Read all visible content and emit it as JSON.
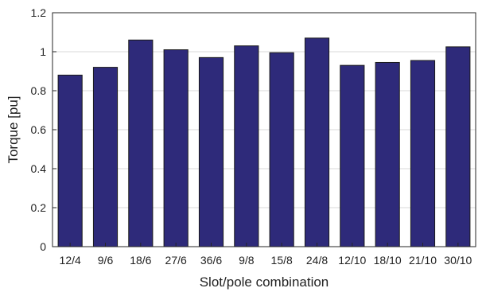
{
  "chart_data": {
    "type": "bar",
    "categories": [
      "12/4",
      "9/6",
      "18/6",
      "27/6",
      "36/6",
      "9/8",
      "15/8",
      "24/8",
      "12/10",
      "18/10",
      "21/10",
      "30/10"
    ],
    "values": [
      0.88,
      0.92,
      1.06,
      1.01,
      0.97,
      1.03,
      0.995,
      1.07,
      0.93,
      0.945,
      0.955,
      1.025
    ],
    "title": "",
    "xlabel": "Slot/pole combination",
    "ylabel": "Torque [pu]",
    "ylim": [
      0,
      1.2
    ],
    "yticks": [
      0,
      0.2,
      0.4,
      0.6,
      0.8,
      1,
      1.2
    ],
    "ytick_labels": [
      "0",
      "0.2",
      "0.4",
      "0.6",
      "0.8",
      "1",
      "1.2"
    ],
    "grid": true,
    "bar_color": "#2e2a7a",
    "legend": "none"
  }
}
